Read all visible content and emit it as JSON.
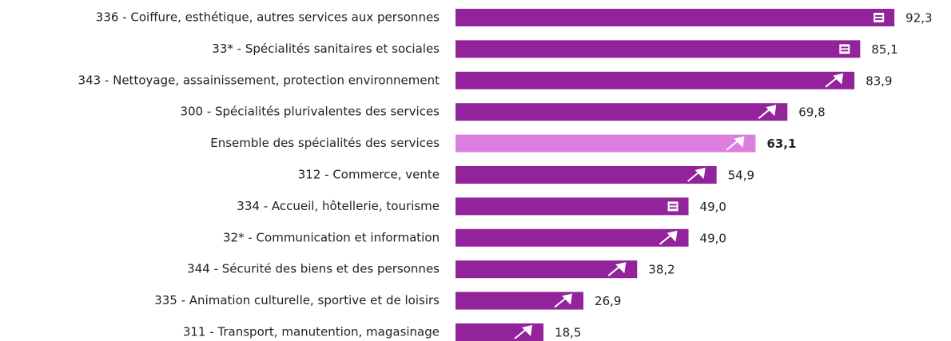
{
  "chart_data": {
    "type": "bar",
    "orientation": "horizontal",
    "categories": [
      "336 - Coiffure, esthétique, autres services aux personnes",
      "33* - Spécialités sanitaires et sociales",
      "343 - Nettoyage, assainissement, protection environnement",
      "300 - Spécialités plurivalentes des services",
      "Ensemble des spécialités des services",
      "312 - Commerce, vente",
      "334 - Accueil, hôtellerie, tourisme",
      "32* - Communication et information",
      "344 - Sécurité des biens et des personnes",
      "335 - Animation culturelle, sportive et de loisirs",
      "311 - Transport, manutention, magasinage"
    ],
    "values": [
      92.3,
      85.1,
      83.9,
      69.8,
      63.1,
      54.9,
      49.0,
      49.0,
      38.2,
      26.9,
      18.5
    ],
    "value_labels": [
      "92,3",
      "85,1",
      "83,9",
      "69,8",
      "63,1",
      "54,9",
      "49,0",
      "49,0",
      "38,2",
      "26,9",
      "18,5"
    ],
    "trend": [
      "=",
      "=",
      "↗",
      "↗",
      "↗",
      "↗",
      "=",
      "↗",
      "↗",
      "↗",
      "↗"
    ],
    "colors": [
      "#92239b",
      "#92239b",
      "#92239b",
      "#92239b",
      "#dd7fe0",
      "#92239b",
      "#92239b",
      "#92239b",
      "#92239b",
      "#92239b",
      "#92239b"
    ],
    "highlight": 4,
    "xlim": [
      0,
      100
    ]
  }
}
